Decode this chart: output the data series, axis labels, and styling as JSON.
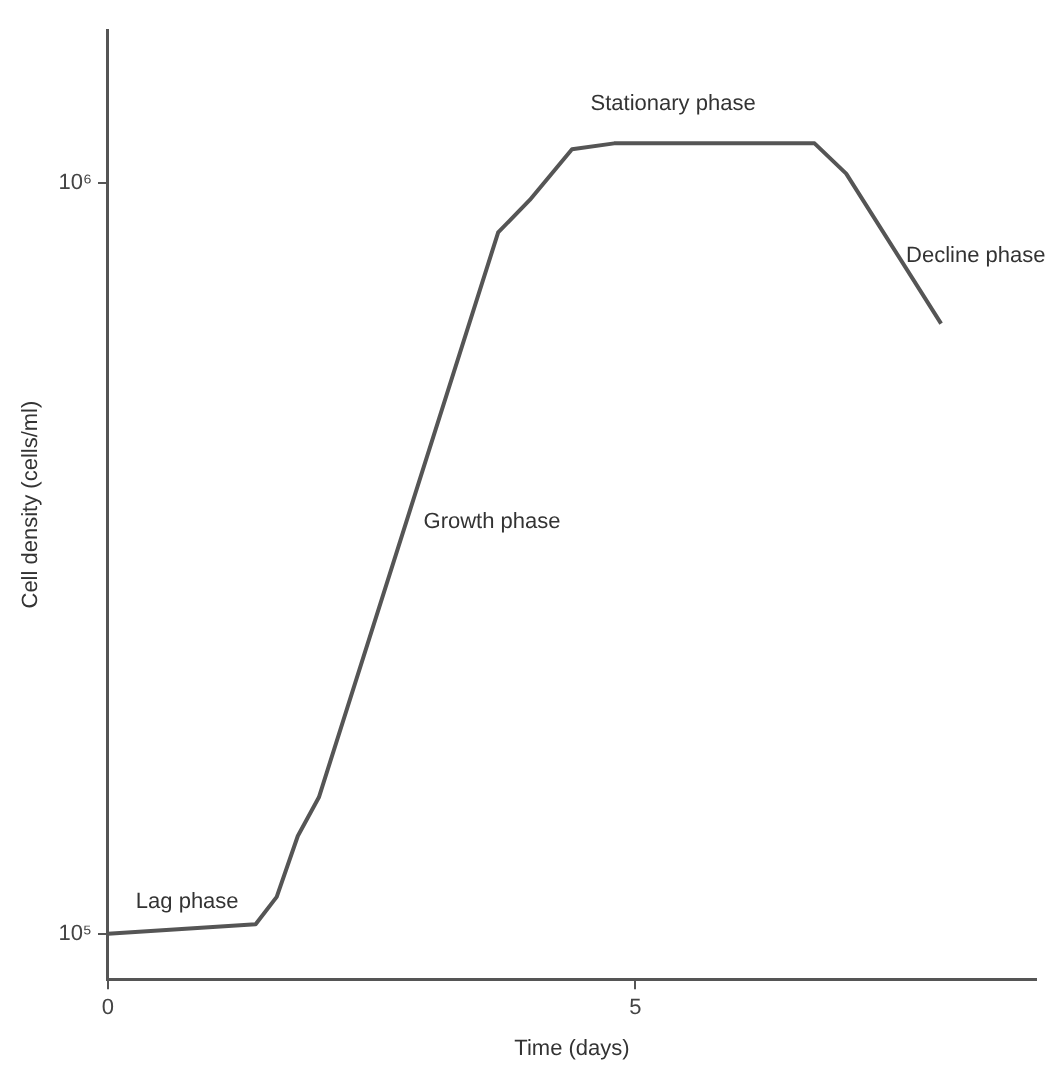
{
  "chart_data": {
    "type": "line",
    "xlabel": "Time (days)",
    "ylabel": "Cell density (cells/ml)",
    "log": "y",
    "grid": false,
    "legend": false,
    "marker": "none",
    "line_style": "solid",
    "x": [
      0,
      1.4,
      1.6,
      1.8,
      2.0,
      3.7,
      4.0,
      4.4,
      4.8,
      6.7,
      7.0,
      7.9
    ],
    "series": [
      {
        "color": "#555555",
        "values": [
          100000,
          103000,
          112000,
          135000,
          152000,
          860000,
          950000,
          1110000,
          1130000,
          1130000,
          1030000,
          650000
        ]
      }
    ],
    "xlim": [
      0,
      8.8
    ],
    "xticks": [
      0,
      5
    ],
    "ylim": [
      87000,
      1600000
    ],
    "yticks": [
      {
        "value": 100000,
        "label": "10⁵"
      },
      {
        "value": 1000000,
        "label": "10⁶"
      }
    ],
    "annotations": [
      "Lag phase",
      "Growth phase",
      "Stationary phase",
      "Decline phase"
    ]
  }
}
